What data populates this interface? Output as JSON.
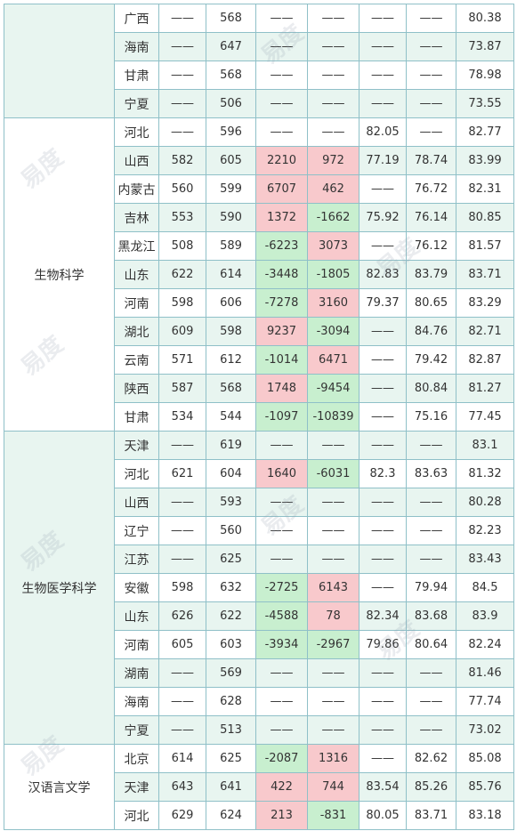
{
  "colors": {
    "border": "#8fc0c8",
    "row_shade": "#e8f5f0",
    "positive_cell": "#f8c9cc",
    "negative_cell": "#c8efcf"
  },
  "groups": [
    {
      "name": "",
      "rows": [
        {
          "prov": "广西",
          "c1": "——",
          "c2": "568",
          "d1": "——",
          "d2": "——",
          "c5": "——",
          "c6": "——",
          "c7": "80.38"
        },
        {
          "prov": "海南",
          "c1": "——",
          "c2": "647",
          "d1": "——",
          "d2": "——",
          "c5": "——",
          "c6": "——",
          "c7": "73.87"
        },
        {
          "prov": "甘肃",
          "c1": "——",
          "c2": "568",
          "d1": "——",
          "d2": "——",
          "c5": "——",
          "c6": "——",
          "c7": "78.98"
        },
        {
          "prov": "宁夏",
          "c1": "——",
          "c2": "506",
          "d1": "——",
          "d2": "——",
          "c5": "——",
          "c6": "——",
          "c7": "73.55"
        }
      ]
    },
    {
      "name": "生物科学",
      "rows": [
        {
          "prov": "河北",
          "c1": "——",
          "c2": "596",
          "d1": "——",
          "d2": "——",
          "c5": "82.05",
          "c6": "——",
          "c7": "82.77"
        },
        {
          "prov": "山西",
          "c1": "582",
          "c2": "605",
          "d1": "2210",
          "d2": "972",
          "c5": "77.19",
          "c6": "78.74",
          "c7": "83.99"
        },
        {
          "prov": "内蒙古",
          "c1": "560",
          "c2": "599",
          "d1": "6707",
          "d2": "462",
          "c5": "——",
          "c6": "76.72",
          "c7": "82.31"
        },
        {
          "prov": "吉林",
          "c1": "553",
          "c2": "590",
          "d1": "1372",
          "d2": "-1662",
          "c5": "75.92",
          "c6": "76.14",
          "c7": "80.85"
        },
        {
          "prov": "黑龙江",
          "c1": "508",
          "c2": "589",
          "d1": "-6223",
          "d2": "3073",
          "c5": "——",
          "c6": "76.12",
          "c7": "81.57"
        },
        {
          "prov": "山东",
          "c1": "622",
          "c2": "614",
          "d1": "-3448",
          "d2": "-1805",
          "c5": "82.83",
          "c6": "83.79",
          "c7": "83.71"
        },
        {
          "prov": "河南",
          "c1": "598",
          "c2": "606",
          "d1": "-7278",
          "d2": "3160",
          "c5": "79.37",
          "c6": "80.65",
          "c7": "83.29"
        },
        {
          "prov": "湖北",
          "c1": "609",
          "c2": "598",
          "d1": "9237",
          "d2": "-3094",
          "c5": "——",
          "c6": "84.76",
          "c7": "82.71"
        },
        {
          "prov": "云南",
          "c1": "571",
          "c2": "612",
          "d1": "-1014",
          "d2": "6471",
          "c5": "——",
          "c6": "79.42",
          "c7": "82.87"
        },
        {
          "prov": "陕西",
          "c1": "587",
          "c2": "568",
          "d1": "1748",
          "d2": "-9454",
          "c5": "——",
          "c6": "80.84",
          "c7": "81.27"
        },
        {
          "prov": "甘肃",
          "c1": "534",
          "c2": "544",
          "d1": "-1097",
          "d2": "-10839",
          "c5": "——",
          "c6": "75.16",
          "c7": "77.45"
        }
      ]
    },
    {
      "name": "生物医学科学",
      "rows": [
        {
          "prov": "天津",
          "c1": "——",
          "c2": "619",
          "d1": "——",
          "d2": "——",
          "c5": "——",
          "c6": "——",
          "c7": "83.1"
        },
        {
          "prov": "河北",
          "c1": "621",
          "c2": "604",
          "d1": "1640",
          "d2": "-6031",
          "c5": "82.3",
          "c6": "83.63",
          "c7": "81.32"
        },
        {
          "prov": "山西",
          "c1": "——",
          "c2": "593",
          "d1": "——",
          "d2": "——",
          "c5": "——",
          "c6": "——",
          "c7": "80.28"
        },
        {
          "prov": "辽宁",
          "c1": "——",
          "c2": "560",
          "d1": "——",
          "d2": "——",
          "c5": "——",
          "c6": "——",
          "c7": "82.23"
        },
        {
          "prov": "江苏",
          "c1": "——",
          "c2": "625",
          "d1": "——",
          "d2": "——",
          "c5": "——",
          "c6": "——",
          "c7": "83.43"
        },
        {
          "prov": "安徽",
          "c1": "598",
          "c2": "632",
          "d1": "-2725",
          "d2": "6143",
          "c5": "——",
          "c6": "79.94",
          "c7": "84.5"
        },
        {
          "prov": "山东",
          "c1": "626",
          "c2": "622",
          "d1": "-4588",
          "d2": "78",
          "c5": "82.34",
          "c6": "83.68",
          "c7": "83.9"
        },
        {
          "prov": "河南",
          "c1": "605",
          "c2": "603",
          "d1": "-3934",
          "d2": "-2967",
          "c5": "79.86",
          "c6": "80.64",
          "c7": "82.24"
        },
        {
          "prov": "湖南",
          "c1": "——",
          "c2": "569",
          "d1": "——",
          "d2": "——",
          "c5": "——",
          "c6": "——",
          "c7": "81.46"
        },
        {
          "prov": "海南",
          "c1": "——",
          "c2": "628",
          "d1": "——",
          "d2": "——",
          "c5": "——",
          "c6": "——",
          "c7": "77.74"
        },
        {
          "prov": "宁夏",
          "c1": "——",
          "c2": "513",
          "d1": "——",
          "d2": "——",
          "c5": "——",
          "c6": "——",
          "c7": "73.02"
        }
      ]
    },
    {
      "name": "汉语言文学",
      "rows": [
        {
          "prov": "北京",
          "c1": "614",
          "c2": "625",
          "d1": "-2087",
          "d2": "1316",
          "c5": "——",
          "c6": "82.62",
          "c7": "85.08"
        },
        {
          "prov": "天津",
          "c1": "643",
          "c2": "641",
          "d1": "422",
          "d2": "744",
          "c5": "83.54",
          "c6": "85.26",
          "c7": "85.76"
        },
        {
          "prov": "河北",
          "c1": "629",
          "c2": "624",
          "d1": "213",
          "d2": "-831",
          "c5": "80.05",
          "c6": "83.71",
          "c7": "83.18"
        }
      ]
    }
  ]
}
